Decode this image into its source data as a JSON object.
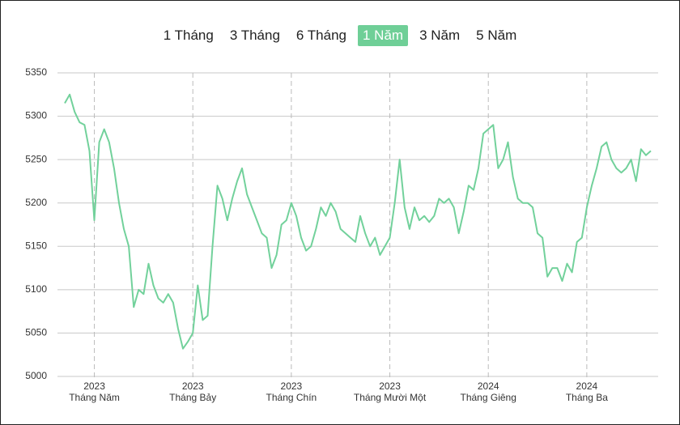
{
  "chart_data": {
    "type": "line",
    "ranges": [
      "1 Tháng",
      "3 Tháng",
      "6 Tháng",
      "1 Năm",
      "3 Năm",
      "5 Năm"
    ],
    "active_range": 3,
    "categories": [
      null,
      null,
      null,
      null,
      null,
      null,
      {
        "year": "2023",
        "month": "Tháng Năm"
      },
      null,
      null,
      null,
      null,
      null,
      null,
      null,
      null,
      null,
      null,
      null,
      null,
      null,
      null,
      null,
      null,
      null,
      null,
      null,
      {
        "year": "2023",
        "month": "Tháng Bảy"
      },
      null,
      null,
      null,
      null,
      null,
      null,
      null,
      null,
      null,
      null,
      null,
      null,
      null,
      null,
      null,
      null,
      null,
      null,
      null,
      {
        "year": "2023",
        "month": "Tháng Chín"
      },
      null,
      null,
      null,
      null,
      null,
      null,
      null,
      null,
      null,
      null,
      null,
      null,
      null,
      null,
      null,
      null,
      null,
      null,
      null,
      {
        "year": "2023",
        "month": "Tháng Mười Một"
      },
      null,
      null,
      null,
      null,
      null,
      null,
      null,
      null,
      null,
      null,
      null,
      null,
      null,
      null,
      null,
      null,
      null,
      null,
      null,
      {
        "year": "2024",
        "month": "Tháng Giêng"
      },
      null,
      null,
      null,
      null,
      null,
      null,
      null,
      null,
      null,
      null,
      null,
      null,
      null,
      null,
      null,
      null,
      null,
      null,
      null,
      {
        "year": "2024",
        "month": "Tháng Ba"
      },
      null,
      null,
      null,
      null,
      null,
      null,
      null,
      null,
      null,
      null,
      null,
      null,
      null
    ],
    "series": [
      {
        "color": "#72d19b",
        "values": [
          5315,
          5325,
          5305,
          5293,
          5290,
          5260,
          5180,
          5270,
          5285,
          5270,
          5240,
          5200,
          5170,
          5150,
          5080,
          5100,
          5095,
          5130,
          5105,
          5090,
          5085,
          5095,
          5085,
          5055,
          5032,
          5040,
          5050,
          5105,
          5065,
          5070,
          5150,
          5220,
          5205,
          5180,
          5205,
          5225,
          5240,
          5210,
          5195,
          5180,
          5165,
          5160,
          5125,
          5140,
          5175,
          5180,
          5200,
          5185,
          5160,
          5145,
          5150,
          5170,
          5195,
          5185,
          5200,
          5190,
          5170,
          5165,
          5160,
          5155,
          5185,
          5165,
          5150,
          5160,
          5140,
          5150,
          5160,
          5200,
          5250,
          5195,
          5170,
          5195,
          5180,
          5185,
          5178,
          5185,
          5205,
          5200,
          5205,
          5195,
          5165,
          5190,
          5220,
          5215,
          5240,
          5280,
          5285,
          5290,
          5240,
          5250,
          5270,
          5230,
          5205,
          5200,
          5200,
          5195,
          5165,
          5160,
          5115,
          5125,
          5125,
          5110,
          5130,
          5120,
          5155,
          5160,
          5195,
          5220,
          5240,
          5265,
          5270,
          5250,
          5240,
          5235,
          5240,
          5250,
          5225,
          5262,
          5255,
          5260
        ]
      }
    ],
    "ylim": [
      5000,
      5350
    ],
    "yticks": [
      5000,
      5050,
      5100,
      5150,
      5200,
      5250,
      5300,
      5350
    ],
    "grid": true
  }
}
